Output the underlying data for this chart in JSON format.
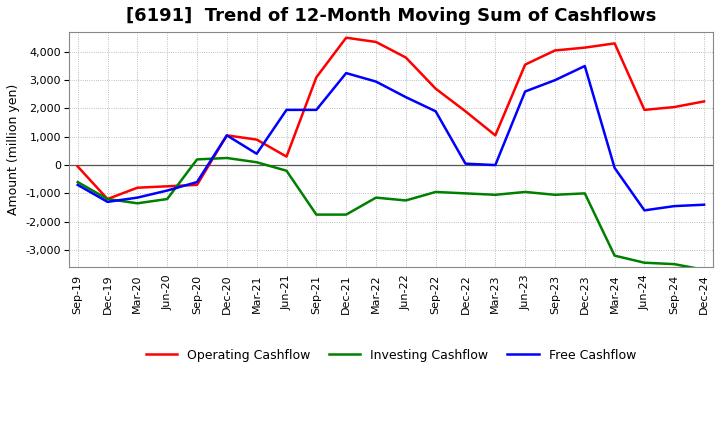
{
  "title": "[6191]  Trend of 12-Month Moving Sum of Cashflows",
  "ylabel": "Amount (million yen)",
  "x_labels": [
    "Sep-19",
    "Dec-19",
    "Mar-20",
    "Jun-20",
    "Sep-20",
    "Dec-20",
    "Mar-21",
    "Jun-21",
    "Sep-21",
    "Dec-21",
    "Mar-22",
    "Jun-22",
    "Sep-22",
    "Dec-22",
    "Mar-23",
    "Jun-23",
    "Sep-23",
    "Dec-23",
    "Mar-24",
    "Jun-24",
    "Sep-24",
    "Dec-24"
  ],
  "operating": [
    -50,
    -1200,
    -800,
    -750,
    -700,
    1050,
    900,
    300,
    3100,
    4500,
    4350,
    3800,
    2700,
    1900,
    1050,
    3550,
    4050,
    4150,
    4300,
    1950,
    2050,
    2250
  ],
  "investing": [
    -600,
    -1200,
    -1350,
    -1200,
    200,
    250,
    100,
    -200,
    -1750,
    -1750,
    -1150,
    -1250,
    -950,
    -1000,
    -1050,
    -950,
    -1050,
    -1000,
    -3200,
    -3450,
    -3500,
    -3700
  ],
  "free": [
    -700,
    -1300,
    -1150,
    -900,
    -600,
    1050,
    400,
    1950,
    1950,
    3250,
    2950,
    2400,
    1900,
    50,
    0,
    2600,
    3000,
    3500,
    -100,
    -1600,
    -1450,
    -1400
  ],
  "ylim": [
    -3600,
    4700
  ],
  "yticks": [
    -3000,
    -2000,
    -1000,
    0,
    1000,
    2000,
    3000,
    4000
  ],
  "operating_color": "#FF0000",
  "investing_color": "#008000",
  "free_color": "#0000FF",
  "background_color": "#FFFFFF",
  "plot_bg_color": "#FFFFFF",
  "grid_color": "#AAAAAA",
  "title_fontsize": 13,
  "axis_fontsize": 9,
  "tick_fontsize": 8,
  "legend_fontsize": 9,
  "linewidth": 1.8
}
